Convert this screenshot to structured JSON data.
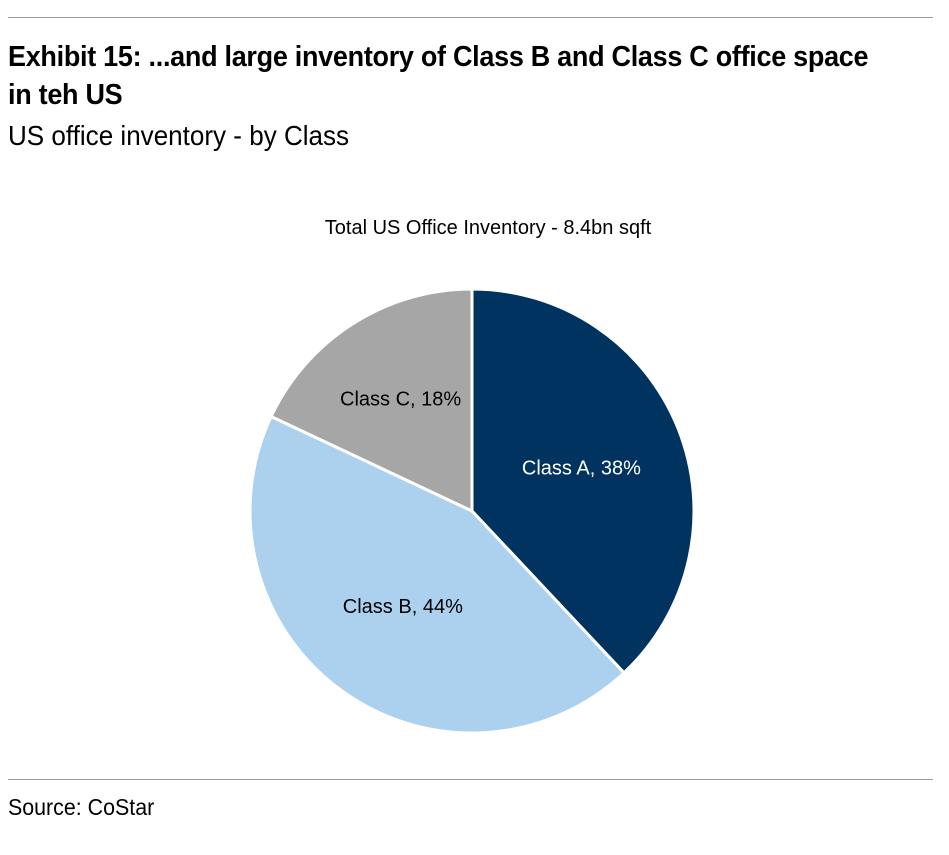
{
  "exhibit": {
    "title": "Exhibit 15: ...and large inventory of Class B and Class C office space in teh US",
    "subtitle": "US office inventory - by Class",
    "source": "Source: CoStar"
  },
  "chart_data": {
    "type": "pie",
    "title": "Total US Office Inventory - 8.4bn sqft",
    "unit": "%",
    "slices": [
      {
        "name": "Class A",
        "value": 38,
        "label": "Class A, 38%",
        "color": "#003360",
        "label_color": "#ffffff"
      },
      {
        "name": "Class B",
        "value": 44,
        "label": "Class B, 44%",
        "color": "#acd1ef",
        "label_color": "#000000"
      },
      {
        "name": "Class C",
        "value": 18,
        "label": "Class C, 18%",
        "color": "#a6a6a6",
        "label_color": "#000000"
      }
    ],
    "start_angle_deg": 0,
    "direction": "clockwise",
    "legend": "none"
  }
}
